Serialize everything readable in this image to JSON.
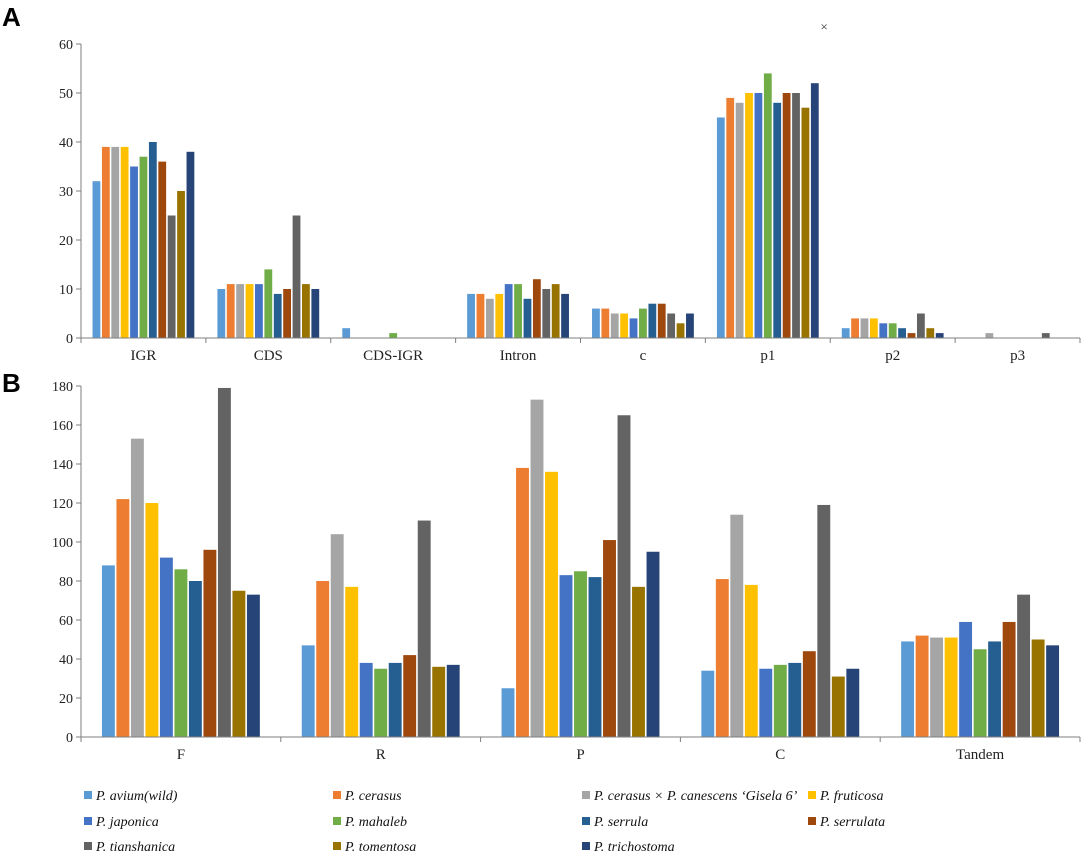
{
  "colors": [
    "#5B9BD5",
    "#ED7D31",
    "#A5A5A5",
    "#FFC000",
    "#4472C4",
    "#70AD47",
    "#255E91",
    "#9E480E",
    "#636363",
    "#997300",
    "#264478"
  ],
  "legend": [
    [
      "P. avium(wild)"
    ],
    [
      "P. cerasus"
    ],
    [
      "P. cerasus × P. canescens ‘Gisela 6’"
    ],
    [
      "P. fruticosa"
    ],
    [
      "P. japonica"
    ],
    [
      "P. mahaleb"
    ],
    [
      "P. serrula"
    ],
    [
      "P. serrulata"
    ],
    [
      "P. tianshanica"
    ],
    [
      "P. tomentosa"
    ],
    [
      "P. trichostoma"
    ]
  ],
  "chart_data": [
    {
      "type": "bar",
      "panel": "A",
      "annotation": "×",
      "categories": [
        "IGR",
        "CDS",
        "CDS-IGR",
        "Intron",
        "c",
        "p1",
        "p2",
        "p3"
      ],
      "ylim": [
        0,
        60
      ],
      "yticks": [
        "0",
        "10",
        "20",
        "30",
        "40",
        "50",
        "60"
      ],
      "series": [
        {
          "name": "P. avium(wild)",
          "values": [
            32,
            10,
            2,
            9,
            6,
            45,
            2,
            0
          ]
        },
        {
          "name": "P. cerasus",
          "values": [
            39,
            11,
            0,
            9,
            6,
            49,
            4,
            0
          ]
        },
        {
          "name": "P. cerasus × P. canescens ‘Gisela 6’",
          "values": [
            39,
            11,
            0,
            8,
            5,
            48,
            4,
            1
          ]
        },
        {
          "name": "P. fruticosa",
          "values": [
            39,
            11,
            0,
            9,
            5,
            50,
            4,
            0
          ]
        },
        {
          "name": "P. japonica",
          "values": [
            35,
            11,
            0,
            11,
            4,
            50,
            3,
            0
          ]
        },
        {
          "name": "P. mahaleb",
          "values": [
            37,
            14,
            1,
            11,
            6,
            54,
            3,
            0
          ]
        },
        {
          "name": "P. serrula",
          "values": [
            40,
            9,
            0,
            8,
            7,
            48,
            2,
            0
          ]
        },
        {
          "name": "P. serrulata",
          "values": [
            36,
            10,
            0,
            12,
            7,
            50,
            1,
            0
          ]
        },
        {
          "name": "P. tianshanica",
          "values": [
            25,
            25,
            0,
            10,
            5,
            50,
            5,
            1
          ]
        },
        {
          "name": "P. tomentosa",
          "values": [
            30,
            11,
            0,
            11,
            3,
            47,
            2,
            0
          ]
        },
        {
          "name": "P. trichostoma",
          "values": [
            38,
            10,
            0,
            9,
            5,
            52,
            1,
            0
          ]
        }
      ]
    },
    {
      "type": "bar",
      "panel": "B",
      "categories": [
        "F",
        "R",
        "P",
        "C",
        "Tandem"
      ],
      "ylim": [
        0,
        180
      ],
      "yticks": [
        "0",
        "20",
        "40",
        "60",
        "80",
        "100",
        "120",
        "140",
        "160",
        "180"
      ],
      "series": [
        {
          "name": "P. avium(wild)",
          "values": [
            88,
            47,
            25,
            34,
            49
          ]
        },
        {
          "name": "P. cerasus",
          "values": [
            122,
            80,
            138,
            81,
            52
          ]
        },
        {
          "name": "P. cerasus × P. canescens ‘Gisela 6’",
          "values": [
            153,
            104,
            173,
            114,
            51
          ]
        },
        {
          "name": "P. fruticosa",
          "values": [
            120,
            77,
            136,
            78,
            51
          ]
        },
        {
          "name": "P. japonica",
          "values": [
            92,
            38,
            83,
            35,
            59
          ]
        },
        {
          "name": "P. mahaleb",
          "values": [
            86,
            35,
            85,
            37,
            45
          ]
        },
        {
          "name": "P. serrula",
          "values": [
            80,
            38,
            82,
            38,
            49
          ]
        },
        {
          "name": "P. serrulata",
          "values": [
            96,
            42,
            101,
            44,
            59
          ]
        },
        {
          "name": "P. tianshanica",
          "values": [
            179,
            111,
            165,
            119,
            73
          ]
        },
        {
          "name": "P. tomentosa",
          "values": [
            75,
            36,
            77,
            31,
            50
          ]
        },
        {
          "name": "P. trichostoma",
          "values": [
            73,
            37,
            95,
            35,
            47
          ]
        }
      ]
    }
  ]
}
